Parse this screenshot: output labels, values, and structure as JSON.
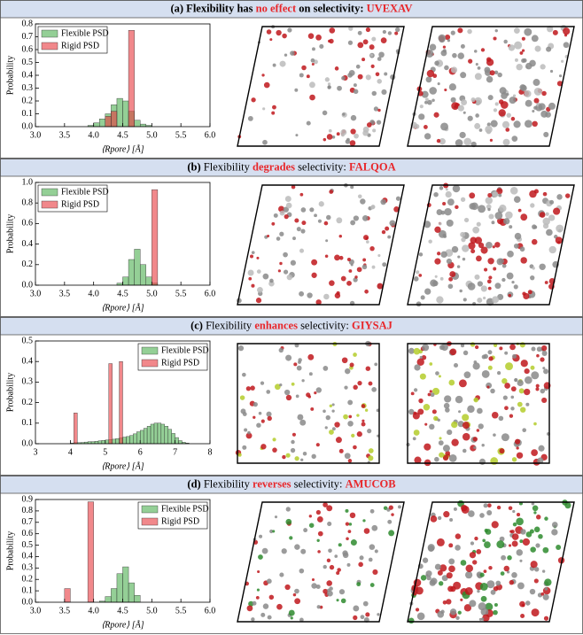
{
  "chart_data": [
    {
      "type": "histogram",
      "title": [
        {
          "text": "(a) Flexibility has ",
          "bold": true
        },
        {
          "text": "no effect",
          "bold": true,
          "color": "#e8262a"
        },
        {
          "text": " on selectivity: ",
          "bold": true
        },
        {
          "text": "UVEXAV",
          "bold": true,
          "color": "#e8262a"
        }
      ],
      "xlabel": "⟨Rpore⟩ [Å]",
      "ylabel": "Probability",
      "legend": "upper left",
      "xlim": [
        3.0,
        6.0
      ],
      "xticks": [
        {
          "value": 3.0,
          "label": "3.0"
        },
        3.5,
        {
          "value": 4.0,
          "label": "4.0"
        },
        4.5,
        {
          "value": 5.0,
          "label": "5.0"
        },
        5.5,
        {
          "value": 6.0,
          "label": "6.0"
        }
      ],
      "ylim": [
        0.0,
        0.8
      ],
      "yticks": [
        {
          "value": 0.0,
          "label": "0.0"
        },
        0.1,
        0.2,
        0.3,
        0.4,
        0.5,
        0.6,
        0.7,
        0.8
      ],
      "series": [
        {
          "name": "Flexible PSD",
          "color": "#4caf50",
          "bins": [
            3.9,
            4.0,
            4.1,
            4.2,
            4.3,
            4.4,
            4.5,
            4.6,
            4.7,
            4.8,
            4.9,
            5.0
          ],
          "values": [
            0.01,
            0.03,
            0.06,
            0.1,
            0.17,
            0.22,
            0.2,
            0.12,
            0.05,
            0.02,
            0.01
          ]
        },
        {
          "name": "Rigid PSD",
          "color": "#e8383d",
          "bins": [
            4.2,
            4.3,
            4.4,
            4.5,
            4.6,
            4.7
          ],
          "values": [
            0.08,
            0.12,
            0,
            0,
            0.75
          ]
        }
      ]
    },
    {
      "type": "histogram",
      "title": [
        {
          "text": "(b)",
          "bold": true
        },
        {
          "text": " Flexibility "
        },
        {
          "text": "degrades",
          "bold": true,
          "color": "#e8262a"
        },
        {
          "text": " selectivity: "
        },
        {
          "text": "FALQOA",
          "bold": true,
          "color": "#e8262a"
        }
      ],
      "xlabel": "⟨Rpore⟩ [Å]",
      "ylabel": "Probability",
      "legend": "upper left",
      "xlim": [
        3.0,
        6.0
      ],
      "xticks": [
        {
          "value": 3.0,
          "label": "3.0"
        },
        3.5,
        {
          "value": 4.0,
          "label": "4.0"
        },
        4.5,
        {
          "value": 5.0,
          "label": "5.0"
        },
        5.5,
        {
          "value": 6.0,
          "label": "6.0"
        }
      ],
      "ylim": [
        0.0,
        1.0
      ],
      "yticks": [
        {
          "value": 0.0,
          "label": "0.0"
        },
        0.2,
        0.4,
        0.6,
        0.8,
        {
          "value": 1.0,
          "label": "1.0"
        }
      ],
      "series": [
        {
          "name": "Flexible PSD",
          "color": "#4caf50",
          "bins": [
            4.4,
            4.5,
            4.6,
            4.7,
            4.8,
            4.9,
            5.0,
            5.1
          ],
          "values": [
            0.02,
            0.08,
            0.25,
            0.35,
            0.2,
            0.08,
            0.02
          ]
        },
        {
          "name": "Rigid PSD",
          "color": "#e8383d",
          "bins": [
            5.0,
            5.1
          ],
          "values": [
            0.93
          ]
        }
      ]
    },
    {
      "type": "histogram",
      "title": [
        {
          "text": "(c)",
          "bold": true
        },
        {
          "text": " Flexibility "
        },
        {
          "text": "enhances",
          "bold": true,
          "color": "#e8262a"
        },
        {
          "text": " selectivity: "
        },
        {
          "text": "GIYSAJ",
          "bold": true,
          "color": "#e8262a"
        }
      ],
      "xlabel": "⟨Rpore⟩ [Å]",
      "ylabel": "Probability",
      "legend": "upper right",
      "xlim": [
        3,
        8
      ],
      "xticks": [
        3,
        4,
        5,
        6,
        7,
        8
      ],
      "ylim": [
        0.0,
        0.5
      ],
      "yticks": [
        {
          "value": 0.0,
          "label": "0.0"
        },
        0.1,
        0.2,
        0.3,
        0.4,
        0.5
      ],
      "series": [
        {
          "name": "Flexible PSD",
          "color": "#4caf50",
          "bins": [
            4.0,
            4.1,
            4.2,
            4.3,
            4.4,
            4.5,
            4.6,
            4.7,
            4.8,
            4.9,
            5.0,
            5.1,
            5.2,
            5.3,
            5.4,
            5.5,
            5.6,
            5.7,
            5.8,
            5.9,
            6.0,
            6.1,
            6.2,
            6.3,
            6.4,
            6.5,
            6.6,
            6.7,
            6.8,
            6.9,
            7.0,
            7.1,
            7.2,
            7.3,
            7.4
          ],
          "values": [
            0.003,
            0.005,
            0.005,
            0.006,
            0.008,
            0.01,
            0.01,
            0.012,
            0.014,
            0.016,
            0.018,
            0.02,
            0.022,
            0.025,
            0.028,
            0.032,
            0.035,
            0.04,
            0.048,
            0.058,
            0.065,
            0.075,
            0.085,
            0.095,
            0.1,
            0.1,
            0.095,
            0.085,
            0.07,
            0.05,
            0.03,
            0.015,
            0.007,
            0.003
          ]
        },
        {
          "name": "Rigid PSD",
          "color": "#e8383d",
          "bins": [
            4.1,
            4.2,
            4.3,
            4.4,
            4.5,
            4.6,
            4.7,
            4.8,
            4.9,
            5.0,
            5.1,
            5.2,
            5.3,
            5.4,
            5.5
          ],
          "values": [
            0.15,
            0,
            0,
            0,
            0,
            0,
            0,
            0,
            0,
            0,
            0.39,
            0,
            0,
            0.4
          ]
        }
      ]
    },
    {
      "type": "histogram",
      "title": [
        {
          "text": "(d)",
          "bold": true
        },
        {
          "text": " Flexibility "
        },
        {
          "text": "reverses",
          "bold": true,
          "color": "#e8262a"
        },
        {
          "text": " selectivity: "
        },
        {
          "text": "AMUCOB",
          "bold": true,
          "color": "#e8262a"
        }
      ],
      "xlabel": "⟨Rpore⟩ [Å]",
      "ylabel": "Probability",
      "legend": "upper right",
      "xlim": [
        3.0,
        6.0
      ],
      "xticks": [
        {
          "value": 3.0,
          "label": "3.0"
        },
        3.5,
        {
          "value": 4.0,
          "label": "4.0"
        },
        4.5,
        {
          "value": 5.0,
          "label": "5.0"
        },
        5.5,
        {
          "value": 6.0,
          "label": "6.0"
        }
      ],
      "ylim": [
        0.0,
        0.9
      ],
      "yticks": [
        {
          "value": 0.0,
          "label": "0.0"
        },
        0.1,
        0.2,
        0.3,
        0.4,
        0.5,
        0.6,
        0.7,
        0.8,
        0.9
      ],
      "series": [
        {
          "name": "Flexible PSD",
          "color": "#4caf50",
          "bins": [
            4.1,
            4.2,
            4.3,
            4.4,
            4.5,
            4.6,
            4.7,
            4.8
          ],
          "values": [
            0.01,
            0.05,
            0.12,
            0.25,
            0.31,
            0.17,
            0.06
          ]
        },
        {
          "name": "Rigid PSD",
          "color": "#e8383d",
          "bins": [
            3.5,
            3.6,
            3.7,
            3.8,
            3.9,
            4.0
          ],
          "values": [
            0.12,
            0,
            0,
            0,
            0.88
          ]
        }
      ]
    }
  ]
}
